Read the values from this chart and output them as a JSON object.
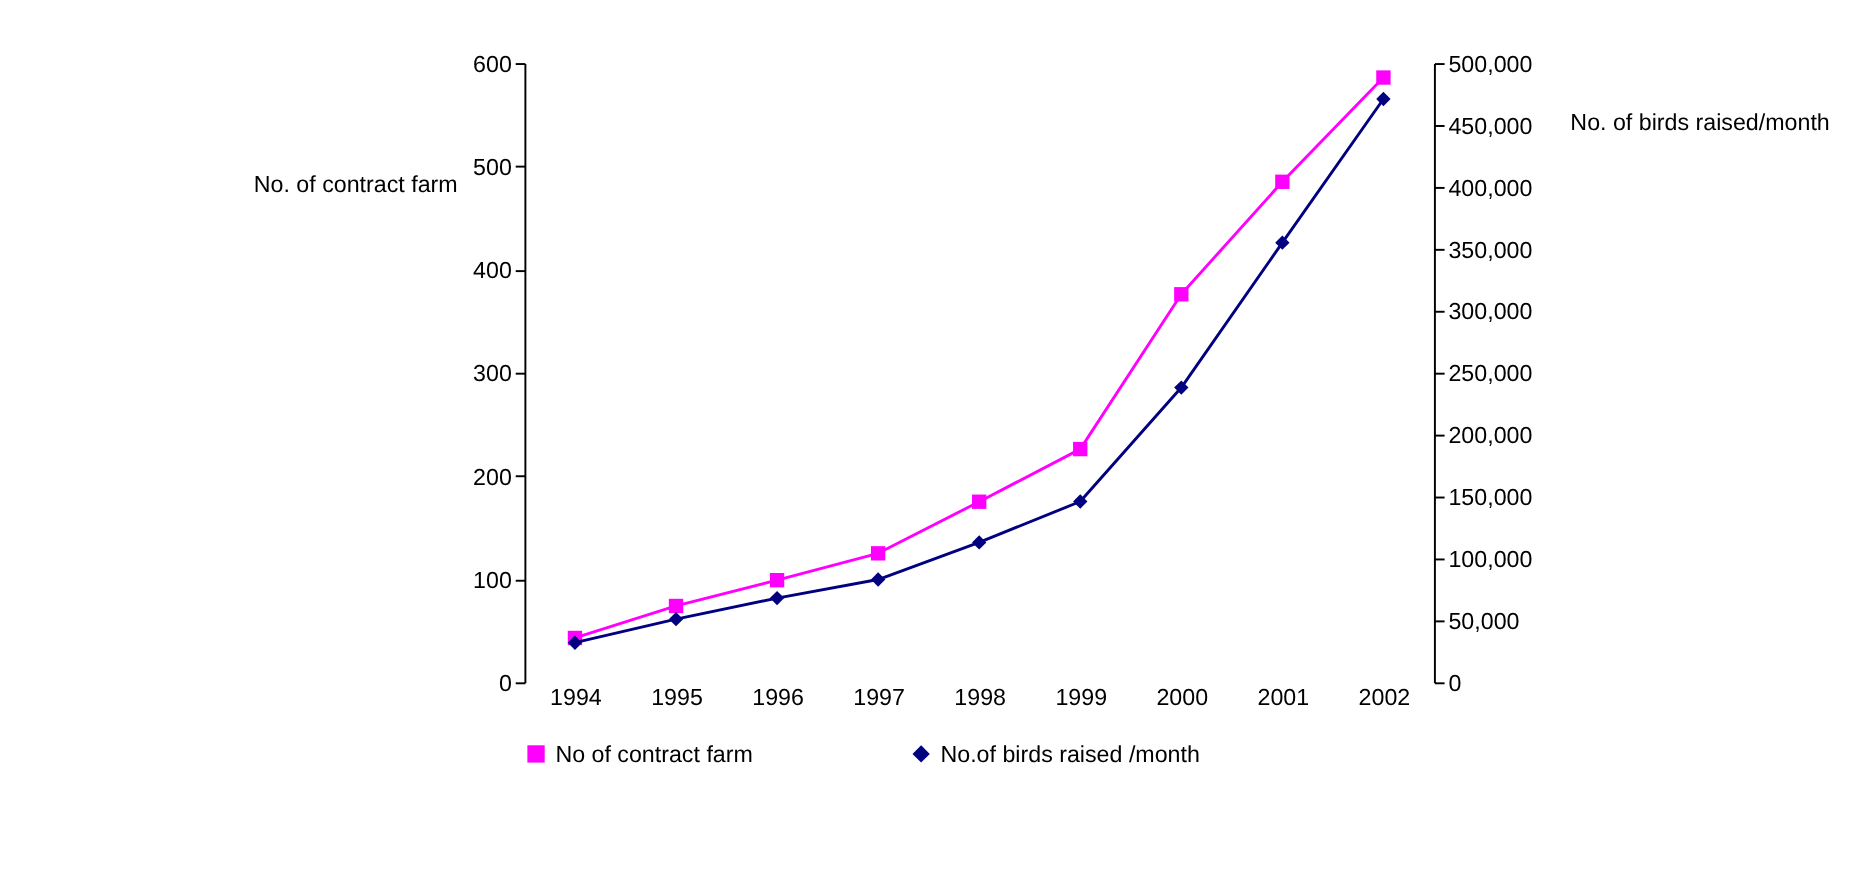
{
  "chart_data": {
    "type": "line",
    "categories": [
      "1994",
      "1995",
      "1996",
      "1997",
      "1998",
      "1999",
      "2000",
      "2001",
      "2002"
    ],
    "ylabel": "No. of contract farm",
    "y2label": "No. of birds raised/month",
    "ylim": [
      0,
      600
    ],
    "yticks": [
      0,
      100,
      200,
      300,
      400,
      500,
      600
    ],
    "y2lim": [
      0,
      500000
    ],
    "y2ticks": [
      {
        "value": 0,
        "label": "0"
      },
      {
        "value": 50000,
        "label": "50,000"
      },
      {
        "value": 100000,
        "label": "100,000"
      },
      {
        "value": 150000,
        "label": "150,000"
      },
      {
        "value": 200000,
        "label": "200,000"
      },
      {
        "value": 250000,
        "label": "250,000"
      },
      {
        "value": 300000,
        "label": "300,000"
      },
      {
        "value": 350000,
        "label": "350,000"
      },
      {
        "value": 400000,
        "label": "400,000"
      },
      {
        "value": 450000,
        "label": "450,000"
      },
      {
        "value": 500000,
        "label": "500,000"
      }
    ],
    "series": [
      {
        "name": "No of contract farm",
        "color": "#ff00ff",
        "marker": "square",
        "values": [
          43,
          74,
          99,
          125,
          175,
          226,
          376,
          485,
          586
        ]
      },
      {
        "name": "No.of birds raised /month",
        "color": "#000080",
        "marker": "diamond",
        "axis": "y2",
        "values": [
          32000,
          51000,
          68000,
          83000,
          113000,
          146000,
          238000,
          355000,
          471000
        ]
      }
    ],
    "grid": false,
    "legend": "bottom"
  }
}
